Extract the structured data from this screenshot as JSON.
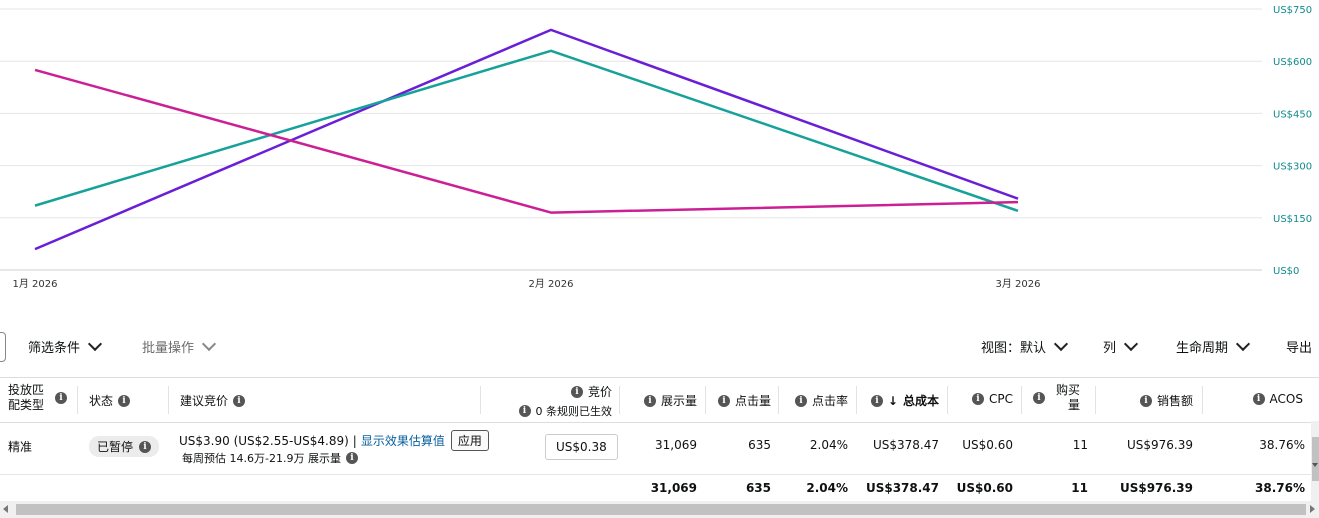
{
  "chart_data": {
    "type": "line",
    "x": [
      "1月 2026",
      "2月 2026",
      "3月 2026"
    ],
    "y_ticks": [
      "US$0",
      "US$150",
      "US$300",
      "US$450",
      "US$600",
      "US$750"
    ],
    "ylim": [
      0,
      750
    ],
    "grid": true,
    "y_axis_side": "right",
    "series": [
      {
        "color": "#6a1fd6",
        "values": [
          60,
          690,
          205
        ]
      },
      {
        "color": "#16a29a",
        "values": [
          185,
          630,
          170
        ]
      },
      {
        "color": "#cc1f95",
        "values": [
          575,
          165,
          195
        ]
      }
    ]
  },
  "toolbar": {
    "filter_label": "筛选条件",
    "bulk_label": "批量操作",
    "view_label": "视图：默认",
    "columns_label": "列",
    "lifecycle_label": "生命周期",
    "export_label": "导出"
  },
  "table": {
    "headers": {
      "match_type": [
        "投放匹",
        "配类型"
      ],
      "status": "状态",
      "suggested_bid": "建议竞价",
      "bid": "竞价",
      "bid_sub": "0 条规则已生效",
      "impressions": "展示量",
      "clicks": "点击量",
      "ctr": "点击率",
      "total_cost": "总成本",
      "total_cost_arrow": "↓",
      "cpc": "CPC",
      "purchases": [
        "购买",
        "量"
      ],
      "sales": "销售额",
      "acos": "ACOS"
    },
    "row": {
      "match_type": "精准",
      "status": "已暂停",
      "suggested_main": "US$3.90 (US$2.55-US$4.89)",
      "suggested_sep": "|",
      "suggested_link": "显示效果估算值",
      "apply_label": "应用",
      "suggested_sub": "每周预估 14.6万-21.9万 展示量",
      "bid": "US$0.38",
      "impressions": "31,069",
      "clicks": "635",
      "ctr": "2.04%",
      "total_cost": "US$378.47",
      "cpc": "US$0.60",
      "purchases": "11",
      "sales": "US$976.39",
      "acos": "38.76%"
    },
    "totals": {
      "impressions": "31,069",
      "clicks": "635",
      "ctr": "2.04%",
      "total_cost": "US$378.47",
      "cpc": "US$0.60",
      "purchases": "11",
      "sales": "US$976.39",
      "acos": "38.76%"
    }
  },
  "icons": {
    "info": "i",
    "info_icon": "info-icon"
  }
}
